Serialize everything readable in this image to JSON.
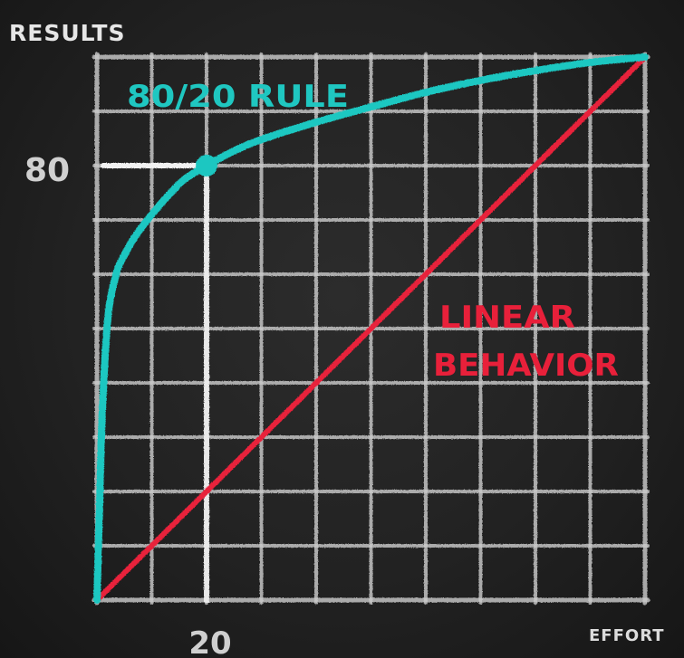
{
  "chart_data": {
    "type": "line",
    "ylabel": "RESULTS",
    "xlabel": "EFFORT",
    "xlim": [
      0,
      100
    ],
    "ylim": [
      0,
      100
    ],
    "grid": true,
    "x_tick_labels": [
      {
        "value": 20,
        "label": "20"
      }
    ],
    "y_tick_labels": [
      {
        "value": 80,
        "label": "80"
      }
    ],
    "series": [
      {
        "name": "80/20 RULE",
        "color": "#1fc7c1",
        "x": [
          0,
          0.5,
          1,
          2,
          3.5,
          5,
          7,
          10,
          13,
          16,
          20,
          25,
          30,
          40,
          50,
          60,
          70,
          80,
          90,
          100
        ],
        "y": [
          0,
          18,
          35,
          52,
          60,
          63.5,
          67,
          71,
          74.5,
          77.5,
          80,
          82.7,
          84.8,
          88,
          90.8,
          93.5,
          95.7,
          97.5,
          99,
          100
        ]
      },
      {
        "name": "LINEAR BEHAVIOR",
        "color": "#e8203a",
        "x": [
          0,
          100
        ],
        "y": [
          0,
          100
        ]
      }
    ],
    "highlight_point": {
      "x": 20,
      "y": 80,
      "color": "#1fc7c1"
    }
  }
}
